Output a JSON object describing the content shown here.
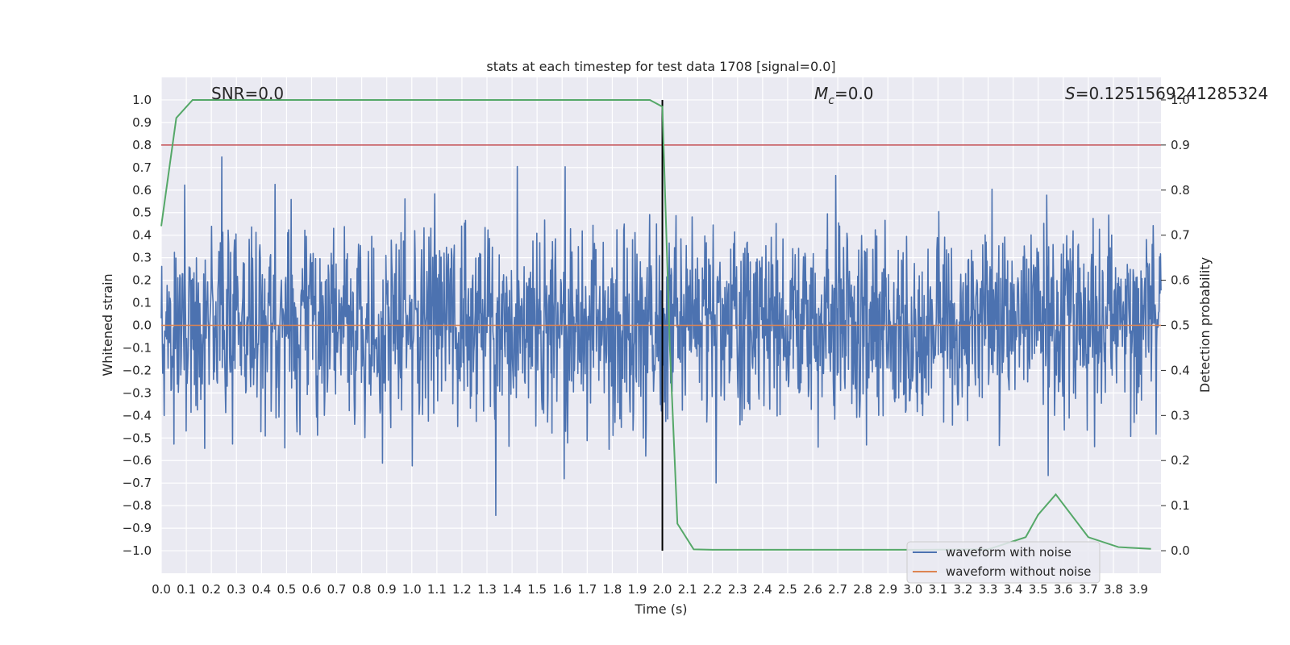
{
  "chart_data": {
    "type": "line",
    "title": "stats at each timestep for test data 1708 [signal=0.0]",
    "xlabel": "Time (s)",
    "ylabel": "Whitened strain",
    "y2label": "Detection probability",
    "xlim": [
      0.0,
      3.99
    ],
    "ylim": [
      -1.1,
      1.1
    ],
    "y2lim": [
      -0.05,
      1.05
    ],
    "xticks": [
      0.0,
      0.1,
      0.2,
      0.3,
      0.4,
      0.5,
      0.6,
      0.7,
      0.8,
      0.9,
      1.0,
      1.1,
      1.2,
      1.3,
      1.4,
      1.5,
      1.6,
      1.7,
      1.8,
      1.9,
      2.0,
      2.1,
      2.2,
      2.3,
      2.4,
      2.5,
      2.6,
      2.7,
      2.8,
      2.9,
      3.0,
      3.1,
      3.2,
      3.3,
      3.4,
      3.5,
      3.6,
      3.7,
      3.8,
      3.9
    ],
    "yticks": [
      1.0,
      0.9,
      0.8,
      0.7,
      0.6,
      0.5,
      0.4,
      0.3,
      0.2,
      0.1,
      0.0,
      -0.1,
      -0.2,
      -0.3,
      -0.4,
      -0.5,
      -0.6,
      -0.7,
      -0.8,
      -0.9,
      -1.0
    ],
    "y2ticks": [
      1.0,
      0.9,
      0.8,
      0.7,
      0.6,
      0.5,
      0.4,
      0.3,
      0.2,
      0.1,
      0.0
    ],
    "annotations": {
      "snr": "SNR=0.0",
      "mc_symbol": "M",
      "mc_sub": "c",
      "mc_value": "=0.0",
      "s_symbol": "S",
      "s_value": "=0.1251569241285324"
    },
    "threshold": 0.8,
    "marker_time": 2.0,
    "noise": {
      "n_samples": 2048,
      "seed": 1708,
      "typical_amplitude": 0.35,
      "min": -0.99,
      "max": 1.0
    },
    "series": [
      {
        "name": "waveform with noise",
        "color": "#4c72b0",
        "axis": "left"
      },
      {
        "name": "waveform without noise",
        "color": "#dd8452",
        "axis": "left",
        "constant": 0.0
      },
      {
        "name": "detection probability",
        "color": "#55a868",
        "axis": "right",
        "x": [
          0.0,
          0.06,
          0.125,
          0.2,
          0.5,
          1.0,
          1.5,
          1.95,
          2.0,
          2.03,
          2.06,
          2.125,
          2.2,
          2.5,
          3.0,
          3.3,
          3.45,
          3.5,
          3.57,
          3.7,
          3.82,
          3.95
        ],
        "values": [
          0.72,
          0.96,
          1.0,
          1.0,
          1.0,
          1.0,
          1.0,
          1.0,
          0.985,
          0.45,
          0.06,
          0.003,
          0.002,
          0.002,
          0.002,
          0.003,
          0.03,
          0.08,
          0.125,
          0.03,
          0.008,
          0.004
        ]
      }
    ],
    "legend": {
      "position": "lower-right",
      "entries": [
        "waveform with noise",
        "waveform without noise"
      ]
    }
  }
}
